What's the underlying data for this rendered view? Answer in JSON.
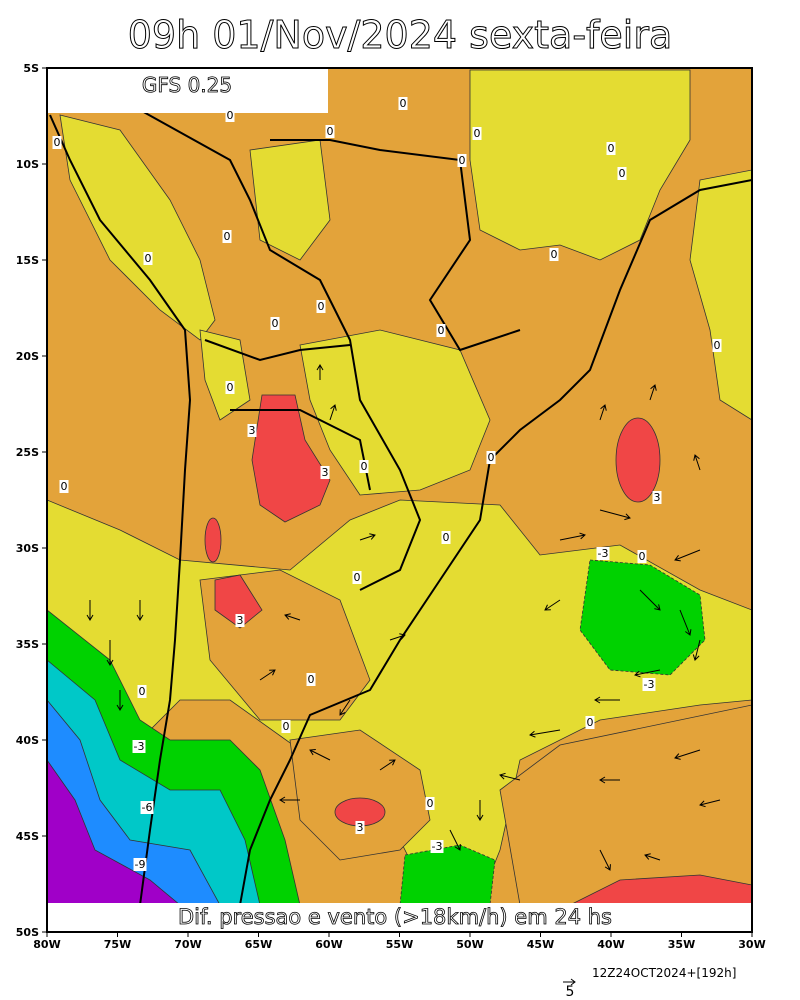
{
  "title": "09h 01/Nov/2024 sexta-feira",
  "model_label": "GFS 0.25",
  "caption": "Dif. pressao e vento (>18km/h) em 24 hs",
  "lat_labels": [
    "5S",
    "10S",
    "15S",
    "20S",
    "25S",
    "30S",
    "35S",
    "40S",
    "45S",
    "50S"
  ],
  "lon_labels": [
    "80W",
    "75W",
    "70W",
    "65W",
    "60W",
    "55W",
    "50W",
    "45W",
    "40W",
    "35W",
    "30W"
  ],
  "contour_labels": [
    "0",
    "0",
    "0",
    "0",
    "0",
    "0",
    "0",
    "0",
    "0",
    "0",
    "0",
    "0",
    "0",
    "0",
    "0",
    "0",
    "0",
    "0",
    "0",
    "0",
    "0",
    "0",
    "0",
    "0",
    "0",
    "0",
    "0",
    "3",
    "3",
    "3",
    "3",
    "3",
    "-3",
    "-3",
    "-3",
    "-3",
    "-6",
    "-9"
  ],
  "vector_scale": "5",
  "run_label": "12Z24OCT2024+[192h]"
}
